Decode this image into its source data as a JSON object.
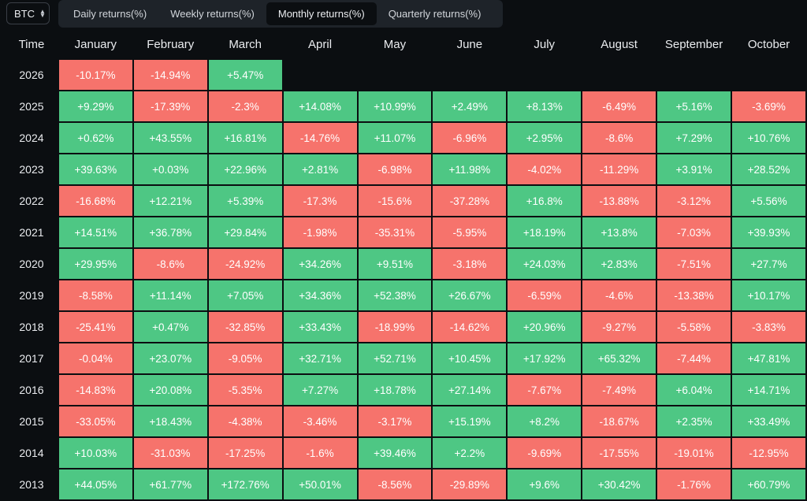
{
  "asset_selector": {
    "value": "BTC"
  },
  "tabs": [
    {
      "label": "Daily returns(%)",
      "active": false
    },
    {
      "label": "Weekly returns(%)",
      "active": false
    },
    {
      "label": "Monthly returns(%)",
      "active": true
    },
    {
      "label": "Quarterly returns(%)",
      "active": false
    }
  ],
  "colors": {
    "positive": "#4ec784",
    "negative": "#f6736c",
    "background": "#0b0e11"
  },
  "table": {
    "header": [
      "Time",
      "January",
      "February",
      "March",
      "April",
      "May",
      "June",
      "July",
      "August",
      "September",
      "October"
    ],
    "rows": [
      {
        "year": "2026",
        "values": [
          "-10.17%",
          "-14.94%",
          "+5.47%",
          "",
          "",
          "",
          "",
          "",
          "",
          ""
        ]
      },
      {
        "year": "2025",
        "values": [
          "+9.29%",
          "-17.39%",
          "-2.3%",
          "+14.08%",
          "+10.99%",
          "+2.49%",
          "+8.13%",
          "-6.49%",
          "+5.16%",
          "-3.69%"
        ]
      },
      {
        "year": "2024",
        "values": [
          "+0.62%",
          "+43.55%",
          "+16.81%",
          "-14.76%",
          "+11.07%",
          "-6.96%",
          "+2.95%",
          "-8.6%",
          "+7.29%",
          "+10.76%"
        ]
      },
      {
        "year": "2023",
        "values": [
          "+39.63%",
          "+0.03%",
          "+22.96%",
          "+2.81%",
          "-6.98%",
          "+11.98%",
          "-4.02%",
          "-11.29%",
          "+3.91%",
          "+28.52%"
        ]
      },
      {
        "year": "2022",
        "values": [
          "-16.68%",
          "+12.21%",
          "+5.39%",
          "-17.3%",
          "-15.6%",
          "-37.28%",
          "+16.8%",
          "-13.88%",
          "-3.12%",
          "+5.56%"
        ]
      },
      {
        "year": "2021",
        "values": [
          "+14.51%",
          "+36.78%",
          "+29.84%",
          "-1.98%",
          "-35.31%",
          "-5.95%",
          "+18.19%",
          "+13.8%",
          "-7.03%",
          "+39.93%"
        ]
      },
      {
        "year": "2020",
        "values": [
          "+29.95%",
          "-8.6%",
          "-24.92%",
          "+34.26%",
          "+9.51%",
          "-3.18%",
          "+24.03%",
          "+2.83%",
          "-7.51%",
          "+27.7%"
        ]
      },
      {
        "year": "2019",
        "values": [
          "-8.58%",
          "+11.14%",
          "+7.05%",
          "+34.36%",
          "+52.38%",
          "+26.67%",
          "-6.59%",
          "-4.6%",
          "-13.38%",
          "+10.17%"
        ]
      },
      {
        "year": "2018",
        "values": [
          "-25.41%",
          "+0.47%",
          "-32.85%",
          "+33.43%",
          "-18.99%",
          "-14.62%",
          "+20.96%",
          "-9.27%",
          "-5.58%",
          "-3.83%"
        ]
      },
      {
        "year": "2017",
        "values": [
          "-0.04%",
          "+23.07%",
          "-9.05%",
          "+32.71%",
          "+52.71%",
          "+10.45%",
          "+17.92%",
          "+65.32%",
          "-7.44%",
          "+47.81%"
        ]
      },
      {
        "year": "2016",
        "values": [
          "-14.83%",
          "+20.08%",
          "-5.35%",
          "+7.27%",
          "+18.78%",
          "+27.14%",
          "-7.67%",
          "-7.49%",
          "+6.04%",
          "+14.71%"
        ]
      },
      {
        "year": "2015",
        "values": [
          "-33.05%",
          "+18.43%",
          "-4.38%",
          "-3.46%",
          "-3.17%",
          "+15.19%",
          "+8.2%",
          "-18.67%",
          "+2.35%",
          "+33.49%"
        ]
      },
      {
        "year": "2014",
        "values": [
          "+10.03%",
          "-31.03%",
          "-17.25%",
          "-1.6%",
          "+39.46%",
          "+2.2%",
          "-9.69%",
          "-17.55%",
          "-19.01%",
          "-12.95%"
        ]
      },
      {
        "year": "2013",
        "values": [
          "+44.05%",
          "+61.77%",
          "+172.76%",
          "+50.01%",
          "-8.56%",
          "-29.89%",
          "+9.6%",
          "+30.42%",
          "-1.76%",
          "+60.79%"
        ]
      }
    ]
  }
}
